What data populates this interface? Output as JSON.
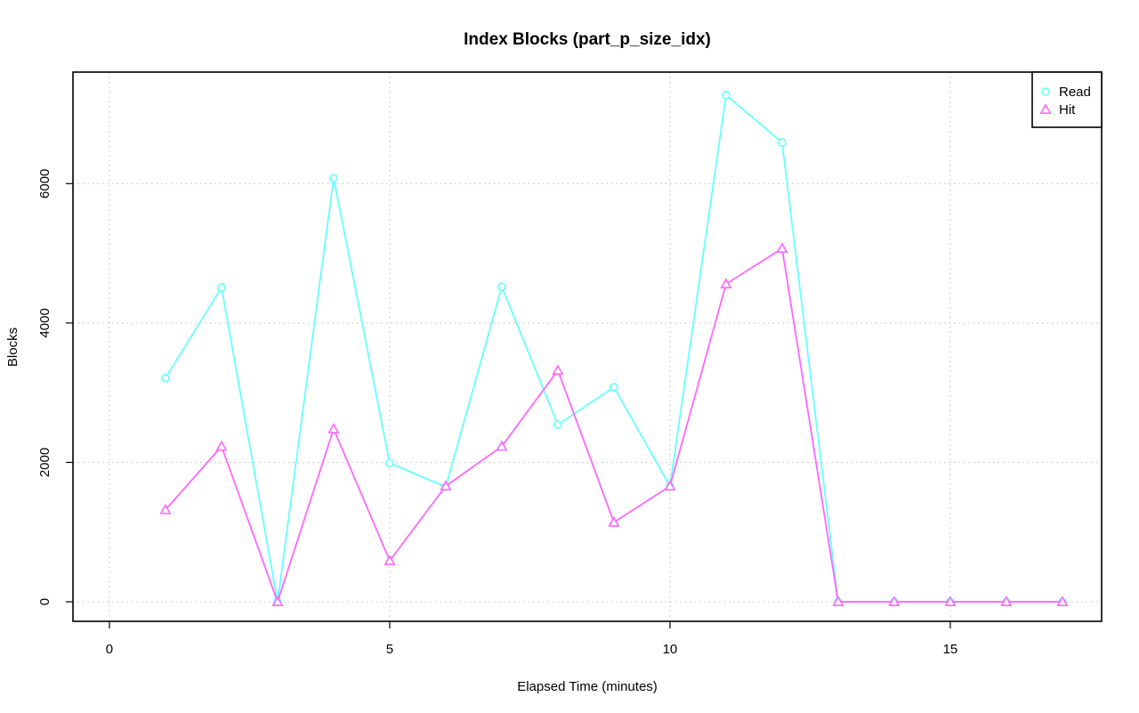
{
  "chart_data": {
    "type": "line",
    "title": "Index Blocks (part_p_size_idx)",
    "xlabel": "Elapsed Time (minutes)",
    "ylabel": "Blocks",
    "xlim": [
      -0.65,
      17.7
    ],
    "ylim": [
      -280,
      7600
    ],
    "xticks": [
      0,
      5,
      10,
      15
    ],
    "yticks": [
      0,
      2000,
      4000,
      6000
    ],
    "grid": true,
    "legend_position": "top-right",
    "x": [
      1,
      2,
      3,
      4,
      5,
      6,
      7,
      8,
      9,
      10,
      11,
      12,
      13,
      14,
      15,
      16,
      17
    ],
    "series": [
      {
        "name": "Read",
        "color": "#66ffff",
        "marker": "circle",
        "values": [
          3210,
          4510,
          0,
          6080,
          1990,
          1650,
          4520,
          2540,
          3080,
          1660,
          7270,
          6590,
          0,
          0,
          0,
          0,
          0
        ]
      },
      {
        "name": "Hit",
        "color": "#ff66ff",
        "marker": "triangle",
        "values": [
          1320,
          2230,
          0,
          2480,
          590,
          1660,
          2230,
          3320,
          1140,
          1660,
          4560,
          5070,
          0,
          0,
          0,
          0,
          0
        ]
      }
    ]
  }
}
